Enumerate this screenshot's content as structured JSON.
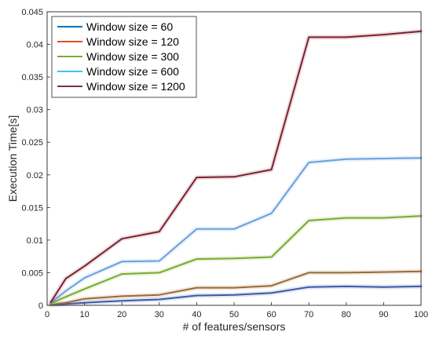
{
  "chart_data": {
    "type": "line",
    "title": "",
    "xlabel": "# of features/sensors",
    "ylabel": "Execution Time[s]",
    "xlim": [
      0,
      100
    ],
    "ylim": [
      0,
      0.045
    ],
    "x_ticks": [
      0,
      10,
      20,
      30,
      40,
      50,
      60,
      70,
      80,
      90,
      100
    ],
    "x_tick_labels": [
      "0",
      "10",
      "20",
      "30",
      "40",
      "50",
      "60",
      "70",
      "80",
      "90",
      "100"
    ],
    "y_ticks": [
      0,
      0.005,
      0.01,
      0.015,
      0.02,
      0.025,
      0.03,
      0.035,
      0.04,
      0.045
    ],
    "y_tick_labels": [
      "0",
      "0.005",
      "0.01",
      "0.015",
      "0.02",
      "0.025",
      "0.03",
      "0.035",
      "0.04",
      "0.045"
    ],
    "grid": false,
    "legend_position": "top-left",
    "x": [
      1,
      5,
      10,
      20,
      30,
      40,
      50,
      60,
      70,
      80,
      90,
      100
    ],
    "series": [
      {
        "name": "Window size = 60",
        "color": "#3a5aa6",
        "values": [
          0.0001,
          0.0002,
          0.0004,
          0.0007,
          0.0009,
          0.0015,
          0.0016,
          0.0019,
          0.0028,
          0.0029,
          0.0028,
          0.0029
        ]
      },
      {
        "name": "Window size = 120",
        "color": "#9a6a35",
        "values": [
          0.0001,
          0.0004,
          0.001,
          0.0014,
          0.0016,
          0.0027,
          0.0027,
          0.003,
          0.005,
          0.005,
          0.0051,
          0.0052
        ]
      },
      {
        "name": "Window size = 300",
        "color": "#77ac30",
        "values": [
          0.0003,
          0.0013,
          0.0025,
          0.0048,
          0.005,
          0.0071,
          0.0072,
          0.0074,
          0.013,
          0.0134,
          0.0134,
          0.0137
        ]
      },
      {
        "name": "Window size = 600",
        "color": "#6a9fe0",
        "values": [
          0.0004,
          0.0022,
          0.0042,
          0.0067,
          0.0068,
          0.0117,
          0.0117,
          0.0141,
          0.0219,
          0.0224,
          0.0225,
          0.0226
        ]
      },
      {
        "name": "Window size = 1200",
        "color": "#7e1f2f",
        "values": [
          0.0005,
          0.0041,
          0.006,
          0.0102,
          0.0113,
          0.0196,
          0.0197,
          0.0208,
          0.0411,
          0.0411,
          0.0415,
          0.042
        ]
      }
    ],
    "legend_colors": [
      "#0072bd",
      "#d95319",
      "#77ac30",
      "#4dbeee",
      "#7e2f3e"
    ]
  }
}
